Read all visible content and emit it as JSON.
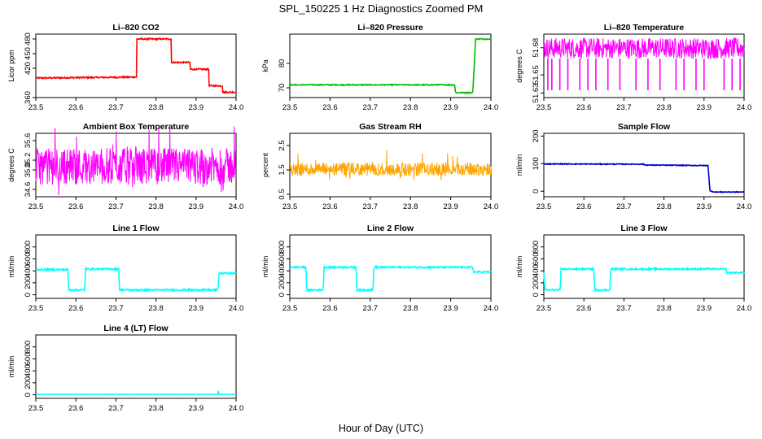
{
  "figure": {
    "title": "SPL_150225  1 Hz Diagnostics Zoomed PM",
    "xlabel": "Hour of Day (UTC)"
  },
  "chart_data": [
    {
      "type": "line",
      "title": "Li–820 CO2",
      "ylabel": "Licor ppm",
      "color": "#ff0000",
      "xlim": [
        23.5,
        24.0
      ],
      "ylim": [
        360,
        490
      ],
      "xticks": [
        "23.5",
        "23.6",
        "23.7",
        "23.8",
        "23.9",
        "24.0"
      ],
      "yticks": [
        {
          "v": 360,
          "label": "360"
        },
        {
          "v": 420,
          "label": "420"
        },
        {
          "v": 450,
          "label": "450"
        },
        {
          "v": 480,
          "label": "480"
        }
      ],
      "noise": 1.5,
      "series": [
        {
          "x": [
            23.5,
            23.752,
            23.752,
            23.838,
            23.838,
            23.885,
            23.885,
            23.932,
            23.932,
            23.967,
            23.967,
            24.0
          ],
          "y": [
            400,
            402,
            480,
            480,
            432,
            432,
            418,
            418,
            384,
            384,
            371,
            371
          ]
        }
      ]
    },
    {
      "type": "line",
      "title": "Li–820 Pressure",
      "ylabel": "kPa",
      "color": "#00bb00",
      "xlim": [
        23.5,
        24.0
      ],
      "ylim": [
        66,
        92
      ],
      "xticks": [
        "23.5",
        "23.6",
        "23.7",
        "23.8",
        "23.9",
        "24.0"
      ],
      "yticks": [
        {
          "v": 70,
          "label": "70"
        },
        {
          "v": 80,
          "label": "80"
        }
      ],
      "noise": 0.2,
      "series": [
        {
          "x": [
            23.5,
            23.83,
            23.91,
            23.912,
            23.955,
            23.962,
            23.985,
            24.0
          ],
          "y": [
            71.2,
            71.2,
            71.2,
            68.0,
            68.0,
            90.0,
            90.0,
            90.0
          ]
        }
      ]
    },
    {
      "type": "line",
      "title": "Li–820 Temperature",
      "ylabel": "degrees C",
      "color": "#ff00ff",
      "xlim": [
        23.5,
        24.0
      ],
      "ylim": [
        51.625,
        51.695
      ],
      "xticks": [
        "23.5",
        "23.6",
        "23.7",
        "23.8",
        "23.9",
        "24.0"
      ],
      "yticks": [
        {
          "v": 51.63,
          "label": "51.63"
        },
        {
          "v": 51.65,
          "label": "51.65"
        },
        {
          "v": 51.68,
          "label": "51.68"
        }
      ],
      "band": [
        51.668,
        51.691
      ],
      "spike_to": 51.633,
      "spike_x": [
        23.51,
        23.52,
        23.54,
        23.56,
        23.59,
        23.61,
        23.63,
        23.66,
        23.69,
        23.73,
        23.76,
        23.79,
        23.83,
        23.85,
        23.88,
        23.9,
        23.95,
        23.97,
        23.99
      ]
    },
    {
      "type": "line",
      "title": "Ambient Box Temperature",
      "ylabel": "degrees C",
      "color": "#ff00ff",
      "xlim": [
        23.5,
        24.0
      ],
      "ylim": [
        34.45,
        35.75
      ],
      "xticks": [
        "23.5",
        "23.6",
        "23.7",
        "23.8",
        "23.9",
        "24.0"
      ],
      "yticks": [
        {
          "v": 34.6,
          "label": "34.6"
        },
        {
          "v": 35.0,
          "label": "35.0"
        },
        {
          "v": 35.2,
          "label": "35.2"
        },
        {
          "v": 35.6,
          "label": "35.6"
        }
      ],
      "band": [
        34.7,
        35.45
      ],
      "noise": 0.3
    },
    {
      "type": "line",
      "title": "Gas Stream RH",
      "ylabel": "percent",
      "color": "#ffa500",
      "xlim": [
        23.5,
        24.0
      ],
      "ylim": [
        0.4,
        3.0
      ],
      "xticks": [
        "23.5",
        "23.6",
        "23.7",
        "23.8",
        "23.9",
        "24.0"
      ],
      "yticks": [
        {
          "v": 0.5,
          "label": "0.5"
        },
        {
          "v": 1.5,
          "label": "1.5"
        },
        {
          "v": 2.5,
          "label": "2.5"
        }
      ],
      "band": [
        1.25,
        1.8
      ],
      "noise": 0.3
    },
    {
      "type": "line",
      "title": "Sample Flow",
      "ylabel": "ml/min",
      "color": "#0000cc",
      "xlim": [
        23.5,
        24.0
      ],
      "ylim": [
        -20,
        210
      ],
      "xticks": [
        "23.5",
        "23.6",
        "23.7",
        "23.8",
        "23.9",
        "24.0"
      ],
      "yticks": [
        {
          "v": 0,
          "label": "0"
        },
        {
          "v": 100,
          "label": "100"
        },
        {
          "v": 200,
          "label": "200"
        }
      ],
      "noise": 1.5,
      "series": [
        {
          "x": [
            23.5,
            23.75,
            23.752,
            23.91,
            23.915,
            23.93,
            24.0
          ],
          "y": [
            99,
            98,
            95,
            93,
            0,
            -3,
            -3
          ]
        }
      ]
    },
    {
      "type": "line",
      "title": "Line 1 Flow",
      "ylabel": "ml/min",
      "color": "#00ffff",
      "xlim": [
        23.5,
        24.0
      ],
      "ylim": [
        -60,
        1000
      ],
      "xticks": [
        "23.5",
        "23.6",
        "23.7",
        "23.8",
        "23.9",
        "24.0"
      ],
      "yticks": [
        {
          "v": 0,
          "label": "0"
        },
        {
          "v": 200,
          "label": "200"
        },
        {
          "v": 400,
          "label": "400"
        },
        {
          "v": 600,
          "label": "600"
        },
        {
          "v": 800,
          "label": "800"
        }
      ],
      "noise": 14,
      "series": [
        {
          "x": [
            23.5,
            23.58,
            23.582,
            23.622,
            23.624,
            23.707,
            23.709,
            23.955,
            23.957,
            24.0
          ],
          "y": [
            420,
            420,
            80,
            80,
            430,
            430,
            80,
            80,
            360,
            360
          ]
        }
      ]
    },
    {
      "type": "line",
      "title": "Line 2 Flow",
      "ylabel": "ml/min",
      "color": "#00ffff",
      "xlim": [
        23.5,
        24.0
      ],
      "ylim": [
        -60,
        1000
      ],
      "xticks": [
        "23.5",
        "23.6",
        "23.7",
        "23.8",
        "23.9",
        "24.0"
      ],
      "yticks": [
        {
          "v": 0,
          "label": "0"
        },
        {
          "v": 200,
          "label": "200"
        },
        {
          "v": 400,
          "label": "400"
        },
        {
          "v": 600,
          "label": "600"
        },
        {
          "v": 800,
          "label": "800"
        }
      ],
      "noise": 14,
      "series": [
        {
          "x": [
            23.5,
            23.54,
            23.542,
            23.583,
            23.585,
            23.665,
            23.667,
            23.707,
            23.709,
            23.955,
            23.957,
            24.0
          ],
          "y": [
            460,
            460,
            80,
            80,
            460,
            460,
            80,
            80,
            460,
            460,
            380,
            380
          ]
        }
      ]
    },
    {
      "type": "line",
      "title": "Line 3 Flow",
      "ylabel": "ml/min",
      "color": "#00ffff",
      "xlim": [
        23.5,
        24.0
      ],
      "ylim": [
        -60,
        1000
      ],
      "xticks": [
        "23.5",
        "23.6",
        "23.7",
        "23.8",
        "23.9",
        "24.0"
      ],
      "yticks": [
        {
          "v": 0,
          "label": "0"
        },
        {
          "v": 200,
          "label": "200"
        },
        {
          "v": 400,
          "label": "400"
        },
        {
          "v": 600,
          "label": "600"
        },
        {
          "v": 800,
          "label": "800"
        }
      ],
      "noise": 14,
      "series": [
        {
          "x": [
            23.5,
            23.503,
            23.541,
            23.543,
            23.625,
            23.627,
            23.665,
            23.667,
            23.955,
            23.957,
            24.0
          ],
          "y": [
            380,
            80,
            80,
            430,
            430,
            80,
            80,
            430,
            430,
            370,
            370
          ]
        }
      ]
    },
    {
      "type": "line",
      "title": "Line 4 (LT) Flow",
      "ylabel": "ml/min",
      "color": "#00ffff",
      "xlim": [
        23.5,
        24.0
      ],
      "ylim": [
        -60,
        1000
      ],
      "xticks": [
        "23.5",
        "23.6",
        "23.7",
        "23.8",
        "23.9",
        "24.0"
      ],
      "yticks": [
        {
          "v": 0,
          "label": "0"
        },
        {
          "v": 200,
          "label": "200"
        },
        {
          "v": 400,
          "label": "400"
        },
        {
          "v": 600,
          "label": "600"
        },
        {
          "v": 800,
          "label": "800"
        }
      ],
      "noise": 2,
      "series": [
        {
          "x": [
            23.5,
            23.955,
            23.956,
            23.957,
            23.958,
            24.0
          ],
          "y": [
            8,
            8,
            110,
            10,
            8,
            8
          ]
        }
      ]
    }
  ]
}
